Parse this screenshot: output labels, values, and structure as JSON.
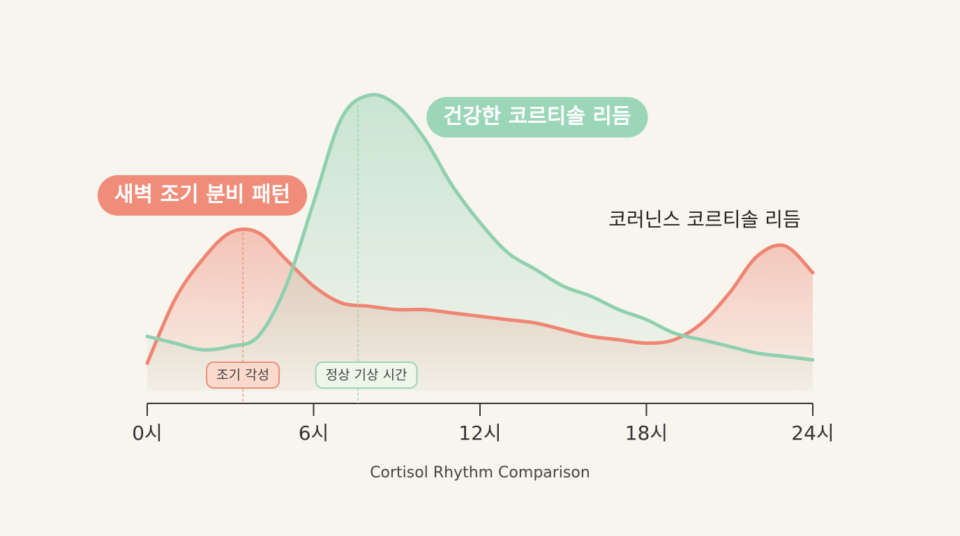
{
  "chart_data": {
    "type": "line",
    "title": "Cortisol Rhythm Comparison",
    "x": [
      0,
      1,
      2,
      3,
      4,
      5,
      6,
      7,
      8,
      9,
      10,
      11,
      12,
      13,
      14,
      15,
      16,
      17,
      18,
      19,
      20,
      21,
      22,
      23,
      24
    ],
    "series": [
      {
        "name": "새벽 조기 분비 패턴",
        "color": "#ee8673",
        "values": [
          12,
          31,
          43,
          51,
          51,
          43,
          35,
          30,
          29,
          28,
          28,
          27,
          26,
          25,
          24,
          22,
          20,
          19,
          18,
          19,
          24,
          33,
          44,
          47,
          39
        ]
      },
      {
        "name": "건강한 코르티솔 리듬",
        "color": "#8fd0b0",
        "values": [
          20,
          18,
          16,
          17,
          20,
          35,
          60,
          85,
          92,
          89,
          79,
          65,
          54,
          45,
          40,
          35,
          32,
          28,
          25,
          21,
          19,
          17,
          15,
          14,
          13
        ]
      }
    ],
    "xlim": [
      0,
      24
    ],
    "xticks": [
      {
        "value": 0,
        "label": "0시"
      },
      {
        "value": 6,
        "label": "6시"
      },
      {
        "value": 12,
        "label": "12시"
      },
      {
        "value": 18,
        "label": "18시"
      },
      {
        "value": 24,
        "label": "24시"
      }
    ],
    "ylim": [
      0,
      100
    ],
    "annotations": [
      {
        "text": "조기 각성",
        "x": 3.45
      },
      {
        "text": "정상 기상 시간",
        "x": 7.6
      }
    ],
    "note": "코러닌스 코르티솔 리듬"
  }
}
